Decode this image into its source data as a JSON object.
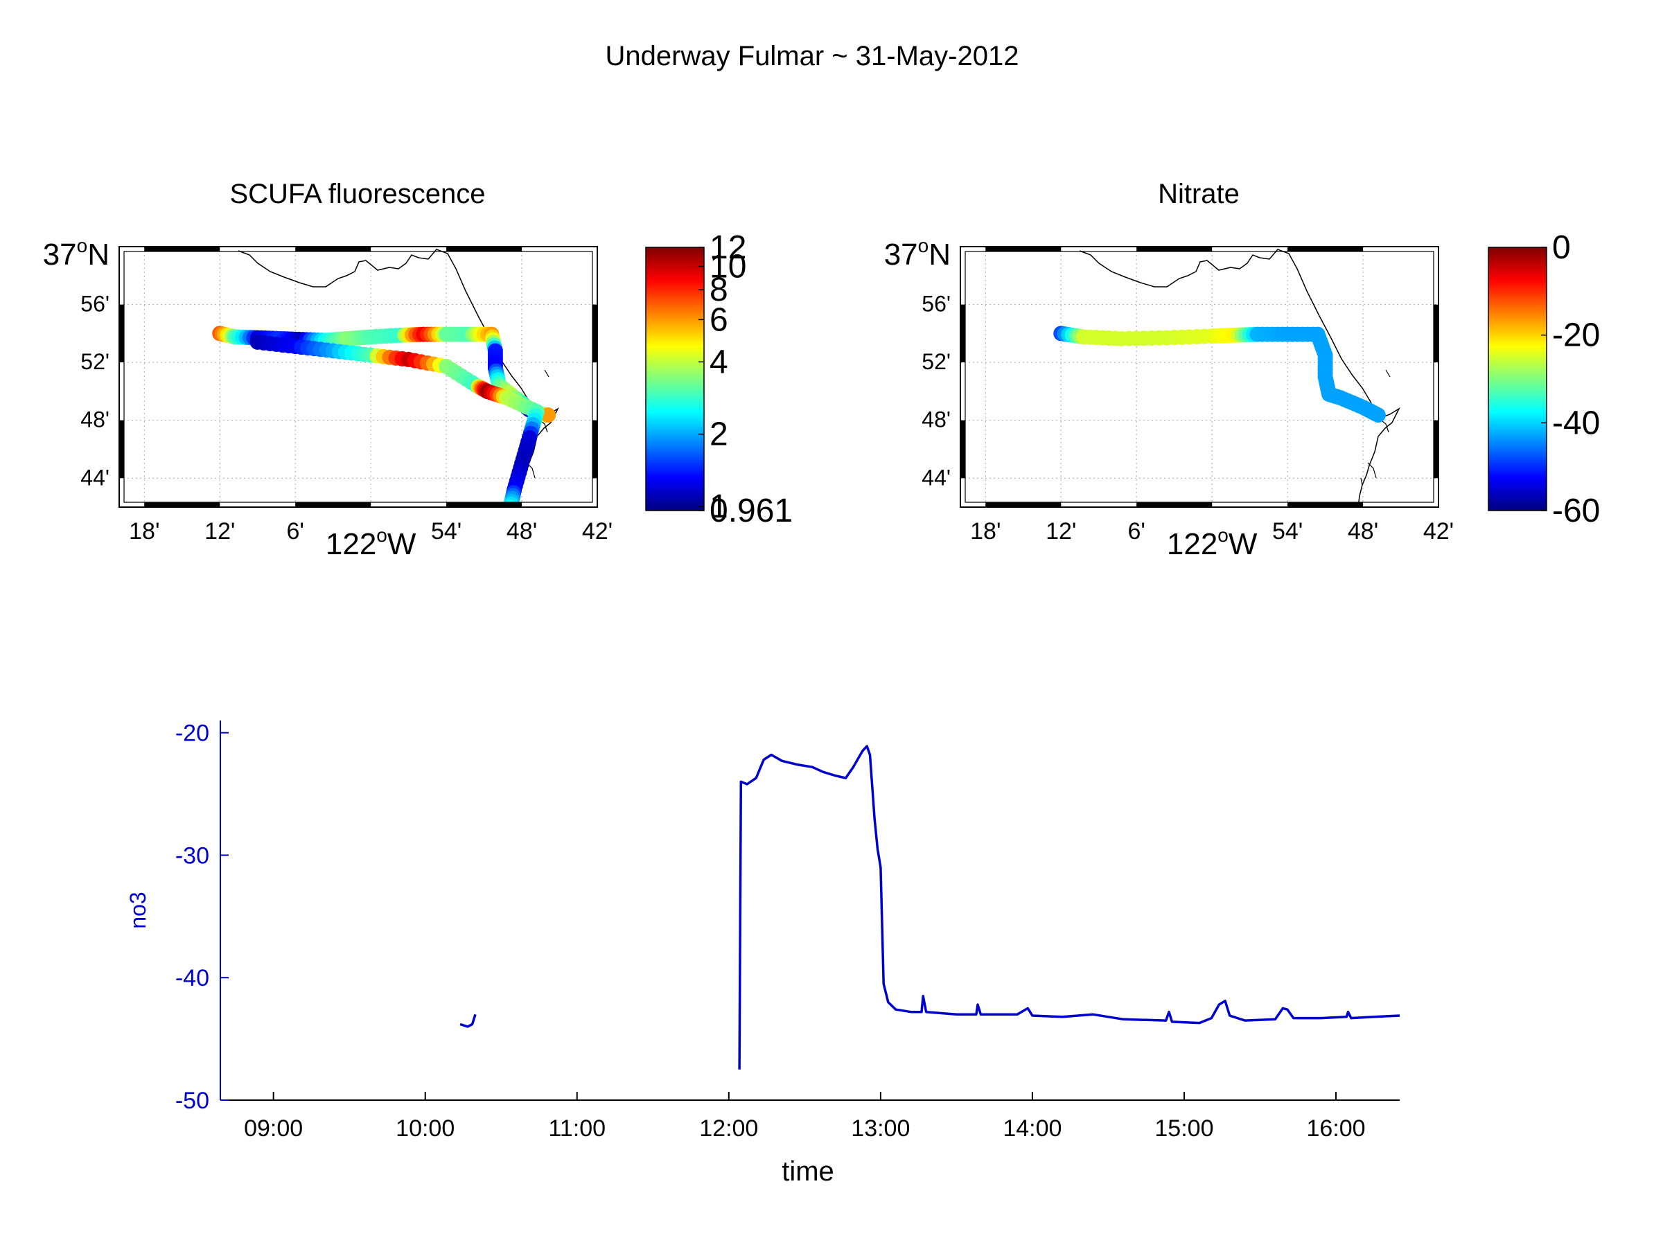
{
  "figure_title": "Underway Fulmar ~ 31-May-2012",
  "chart_data": [
    {
      "type": "scatter",
      "title": "SCUFA fluorescence",
      "x_ticks": [
        "18'",
        "12'",
        "6'",
        "54'",
        "48'",
        "42'"
      ],
      "x_axis_label": "122°W",
      "x_axis_label_parts": [
        "122",
        "o",
        "W"
      ],
      "y_ticks": [
        "56'",
        "52'",
        "48'",
        "44'"
      ],
      "y_top_label": "37°N",
      "y_top_label_parts": [
        "37",
        "o",
        "N"
      ],
      "colorbar": {
        "min": 0.961,
        "max": 12,
        "ticks": [
          "12",
          "10",
          "8",
          "6",
          "4",
          "2",
          "1",
          "0.961"
        ]
      },
      "track_points": [
        {
          "lon": -122.2,
          "lat": 36.9,
          "v": 7
        },
        {
          "lon": -122.18,
          "lat": 36.896,
          "v": 3
        },
        {
          "lon": -122.15,
          "lat": 36.895,
          "v": 1.2
        },
        {
          "lon": -122.12,
          "lat": 36.894,
          "v": 1.5
        },
        {
          "lon": -122.09,
          "lat": 36.893,
          "v": 1.1
        },
        {
          "lon": -122.06,
          "lat": 36.892,
          "v": 2.5
        },
        {
          "lon": -122.03,
          "lat": 36.894,
          "v": 3.5
        },
        {
          "lon": -122.0,
          "lat": 36.896,
          "v": 3.0
        },
        {
          "lon": -121.96,
          "lat": 36.898,
          "v": 2.8
        },
        {
          "lon": -121.93,
          "lat": 36.899,
          "v": 9
        },
        {
          "lon": -121.9,
          "lat": 36.899,
          "v": 3.2
        },
        {
          "lon": -121.87,
          "lat": 36.899,
          "v": 3.0
        },
        {
          "lon": -121.84,
          "lat": 36.899,
          "v": 6
        },
        {
          "lon": -121.835,
          "lat": 36.88,
          "v": 1.4
        },
        {
          "lon": -121.835,
          "lat": 36.86,
          "v": 1.3
        },
        {
          "lon": -121.83,
          "lat": 36.84,
          "v": 3
        },
        {
          "lon": -121.815,
          "lat": 36.83,
          "v": 4
        },
        {
          "lon": -121.8,
          "lat": 36.82,
          "v": 3
        },
        {
          "lon": -121.79,
          "lat": 36.812,
          "v": 1.2
        },
        {
          "lon": -121.775,
          "lat": 36.807,
          "v": 1.0
        },
        {
          "lon": -121.765,
          "lat": 36.806,
          "v": 6
        },
        {
          "lon": -122.15,
          "lat": 36.89,
          "v": 1.1
        },
        {
          "lon": -122.1,
          "lat": 36.885,
          "v": 1.3
        },
        {
          "lon": -122.05,
          "lat": 36.88,
          "v": 2
        },
        {
          "lon": -122.0,
          "lat": 36.875,
          "v": 3
        },
        {
          "lon": -121.95,
          "lat": 36.87,
          "v": 10
        },
        {
          "lon": -121.9,
          "lat": 36.862,
          "v": 3.5
        },
        {
          "lon": -121.86,
          "lat": 36.84,
          "v": 2.8
        },
        {
          "lon": -121.845,
          "lat": 36.833,
          "v": 11
        },
        {
          "lon": -121.82,
          "lat": 36.826,
          "v": 4
        },
        {
          "lon": -121.78,
          "lat": 36.81,
          "v": 3
        },
        {
          "lon": -121.79,
          "lat": 36.78,
          "v": 1.2
        },
        {
          "lon": -121.8,
          "lat": 36.75,
          "v": 1.1
        },
        {
          "lon": -121.81,
          "lat": 36.72,
          "v": 1.3
        },
        {
          "lon": -121.815,
          "lat": 36.7,
          "v": 2.5
        }
      ]
    },
    {
      "type": "scatter",
      "title": "Nitrate",
      "x_ticks": [
        "18'",
        "12'",
        "6'",
        "54'",
        "48'",
        "42'"
      ],
      "x_axis_label": "122°W",
      "x_axis_label_parts": [
        "122",
        "o",
        "W"
      ],
      "y_ticks": [
        "56'",
        "52'",
        "48'",
        "44'"
      ],
      "y_top_label": "37°N",
      "y_top_label_parts": [
        "37",
        "o",
        "N"
      ],
      "colorbar": {
        "min": -60,
        "max": 0,
        "ticks": [
          "0",
          "-20",
          "-40",
          "-60"
        ]
      },
      "track_points": [
        {
          "lon": -122.2,
          "lat": 36.9,
          "v": -48
        },
        {
          "lon": -122.17,
          "lat": 36.896,
          "v": -25
        },
        {
          "lon": -122.12,
          "lat": 36.894,
          "v": -25
        },
        {
          "lon": -122.06,
          "lat": 36.895,
          "v": -25
        },
        {
          "lon": -122.0,
          "lat": 36.897,
          "v": -24
        },
        {
          "lon": -121.97,
          "lat": 36.898,
          "v": -22
        },
        {
          "lon": -121.94,
          "lat": 36.899,
          "v": -42
        },
        {
          "lon": -121.9,
          "lat": 36.899,
          "v": -43
        },
        {
          "lon": -121.86,
          "lat": 36.899,
          "v": -43
        },
        {
          "lon": -121.85,
          "lat": 36.875,
          "v": -43
        },
        {
          "lon": -121.85,
          "lat": 36.85,
          "v": -43
        },
        {
          "lon": -121.845,
          "lat": 36.83,
          "v": -43
        },
        {
          "lon": -121.83,
          "lat": 36.826,
          "v": -43
        },
        {
          "lon": -121.8,
          "lat": 36.815,
          "v": -43
        },
        {
          "lon": -121.78,
          "lat": 36.806,
          "v": -43
        }
      ]
    },
    {
      "type": "line",
      "title": "",
      "xlabel": "time",
      "ylabel": "no3",
      "ylim": [
        -50,
        -19
      ],
      "xlim_hours": [
        8.65,
        16.42
      ],
      "x_ticks": [
        "09:00",
        "10:00",
        "11:00",
        "12:00",
        "13:00",
        "14:00",
        "15:00",
        "16:00"
      ],
      "y_ticks": [
        "-20",
        "-30",
        "-40",
        "-50"
      ],
      "series": [
        {
          "name": "no3",
          "color": "#0000cc",
          "segments": [
            [
              [
                10.23,
                -43.8
              ],
              [
                10.28,
                -44.0
              ],
              [
                10.31,
                -43.8
              ],
              [
                10.33,
                -43.0
              ]
            ],
            [
              [
                12.07,
                -47.5
              ],
              [
                12.08,
                -24.0
              ],
              [
                12.12,
                -24.2
              ],
              [
                12.18,
                -23.7
              ],
              [
                12.23,
                -22.2
              ],
              [
                12.28,
                -21.8
              ],
              [
                12.35,
                -22.3
              ],
              [
                12.45,
                -22.6
              ],
              [
                12.55,
                -22.8
              ],
              [
                12.62,
                -23.2
              ],
              [
                12.7,
                -23.5
              ],
              [
                12.77,
                -23.7
              ],
              [
                12.82,
                -22.8
              ],
              [
                12.88,
                -21.5
              ],
              [
                12.91,
                -21.1
              ],
              [
                12.93,
                -21.8
              ],
              [
                12.96,
                -27.0
              ],
              [
                12.98,
                -29.5
              ],
              [
                13.0,
                -31.0
              ],
              [
                13.02,
                -40.5
              ],
              [
                13.05,
                -42.0
              ],
              [
                13.1,
                -42.6
              ],
              [
                13.2,
                -42.8
              ],
              [
                13.27,
                -42.8
              ],
              [
                13.28,
                -41.5
              ],
              [
                13.3,
                -42.8
              ],
              [
                13.5,
                -43.0
              ],
              [
                13.63,
                -43.0
              ],
              [
                13.64,
                -42.2
              ],
              [
                13.66,
                -43.0
              ],
              [
                13.9,
                -43.0
              ],
              [
                13.97,
                -42.5
              ],
              [
                14.0,
                -43.1
              ],
              [
                14.2,
                -43.2
              ],
              [
                14.4,
                -43.0
              ],
              [
                14.6,
                -43.4
              ],
              [
                14.88,
                -43.5
              ],
              [
                14.9,
                -42.8
              ],
              [
                14.92,
                -43.6
              ],
              [
                15.1,
                -43.7
              ],
              [
                15.18,
                -43.3
              ],
              [
                15.23,
                -42.2
              ],
              [
                15.27,
                -41.9
              ],
              [
                15.3,
                -43.1
              ],
              [
                15.4,
                -43.5
              ],
              [
                15.6,
                -43.4
              ],
              [
                15.65,
                -42.5
              ],
              [
                15.68,
                -42.6
              ],
              [
                15.72,
                -43.3
              ],
              [
                15.9,
                -43.3
              ],
              [
                16.07,
                -43.2
              ],
              [
                16.08,
                -42.8
              ],
              [
                16.1,
                -43.3
              ],
              [
                16.25,
                -43.2
              ],
              [
                16.42,
                -43.1
              ]
            ]
          ]
        }
      ]
    }
  ]
}
